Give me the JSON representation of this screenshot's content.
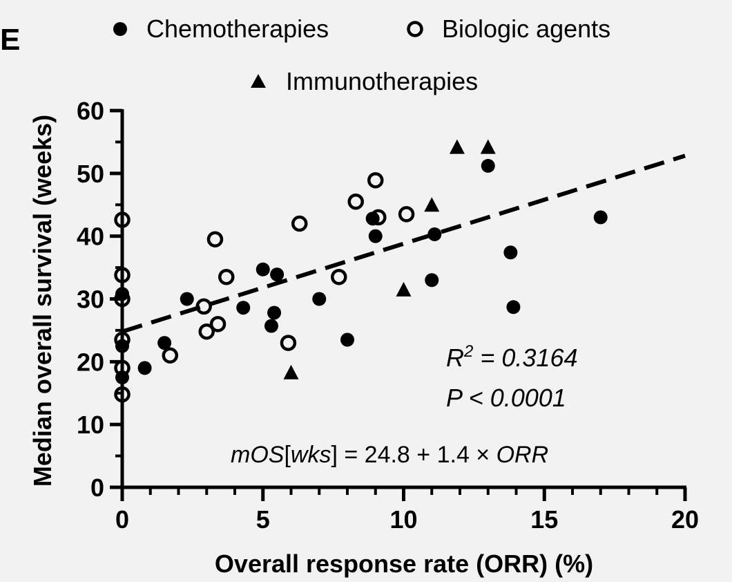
{
  "panel_label": "E",
  "legend": [
    {
      "label": "Chemotherapies",
      "marker": "filled-circle"
    },
    {
      "label": "Biologic agents",
      "marker": "open-circle"
    },
    {
      "label": "Immunotherapies",
      "marker": "filled-triangle"
    }
  ],
  "annotations": {
    "r2_prefix": "R",
    "r2_sup": "2",
    "r2_value": " = 0.3164",
    "p_value": "P < 0.0001",
    "equation_mos": "mOS",
    "equation_bracket_open": "[",
    "equation_wks": "wks",
    "equation_bracket_close": "]",
    "equation_rest": " = 24.8 + 1.4 × ",
    "equation_orr": "ORR"
  },
  "colors": {
    "marker": "#000000",
    "background": "#f2f2f2"
  },
  "chart_data": {
    "type": "scatter",
    "xlabel": "Overall response rate (ORR) (%)",
    "ylabel": "Median overall survival (weeks)",
    "xlim": [
      0,
      20
    ],
    "ylim": [
      0,
      60
    ],
    "xticks": [
      0,
      5,
      10,
      15,
      20
    ],
    "yticks": [
      0,
      10,
      20,
      30,
      40,
      50,
      60
    ],
    "x_tick_labels": [
      "0",
      "5",
      "10",
      "15",
      "20"
    ],
    "y_tick_labels": [
      "0",
      "10",
      "20",
      "30",
      "40",
      "50",
      "60"
    ],
    "legend_position": "top",
    "grid": false,
    "series": [
      {
        "name": "Chemotherapies",
        "marker": "filled-circle",
        "points": [
          [
            0,
            17.5
          ],
          [
            0,
            22.5
          ],
          [
            0,
            30.8
          ],
          [
            0.8,
            19
          ],
          [
            1.5,
            23
          ],
          [
            2.3,
            30
          ],
          [
            4.3,
            28.6
          ],
          [
            5,
            34.7
          ],
          [
            5.3,
            25.7
          ],
          [
            5.4,
            27.8
          ],
          [
            5.5,
            33.9
          ],
          [
            7,
            30
          ],
          [
            8,
            23.5
          ],
          [
            8.9,
            42.8
          ],
          [
            9,
            40
          ],
          [
            11,
            33
          ],
          [
            11.1,
            40.3
          ],
          [
            13,
            51.2
          ],
          [
            13.8,
            37.4
          ],
          [
            13.9,
            28.7
          ],
          [
            17,
            43
          ]
        ]
      },
      {
        "name": "Biologic agents",
        "marker": "open-circle",
        "points": [
          [
            0,
            14.8
          ],
          [
            0,
            19
          ],
          [
            0,
            23.5
          ],
          [
            0,
            30
          ],
          [
            0,
            33.8
          ],
          [
            0,
            42.6
          ],
          [
            1.7,
            21
          ],
          [
            2.9,
            28.8
          ],
          [
            3,
            24.8
          ],
          [
            3.3,
            39.5
          ],
          [
            3.4,
            26
          ],
          [
            3.7,
            33.5
          ],
          [
            5.9,
            23
          ],
          [
            6.3,
            42
          ],
          [
            7.7,
            33.5
          ],
          [
            8.3,
            45.5
          ],
          [
            9,
            48.9
          ],
          [
            9.1,
            43
          ],
          [
            10.1,
            43.5
          ]
        ]
      },
      {
        "name": "Immunotherapies",
        "marker": "filled-triangle",
        "points": [
          [
            6,
            18.3
          ],
          [
            10,
            31.5
          ],
          [
            11,
            45
          ],
          [
            11.9,
            54.2
          ],
          [
            13,
            54.2
          ]
        ]
      }
    ],
    "trendline": {
      "style": "dashed",
      "intercept": 24.8,
      "slope": 1.4,
      "x_range": [
        0,
        20
      ]
    }
  }
}
